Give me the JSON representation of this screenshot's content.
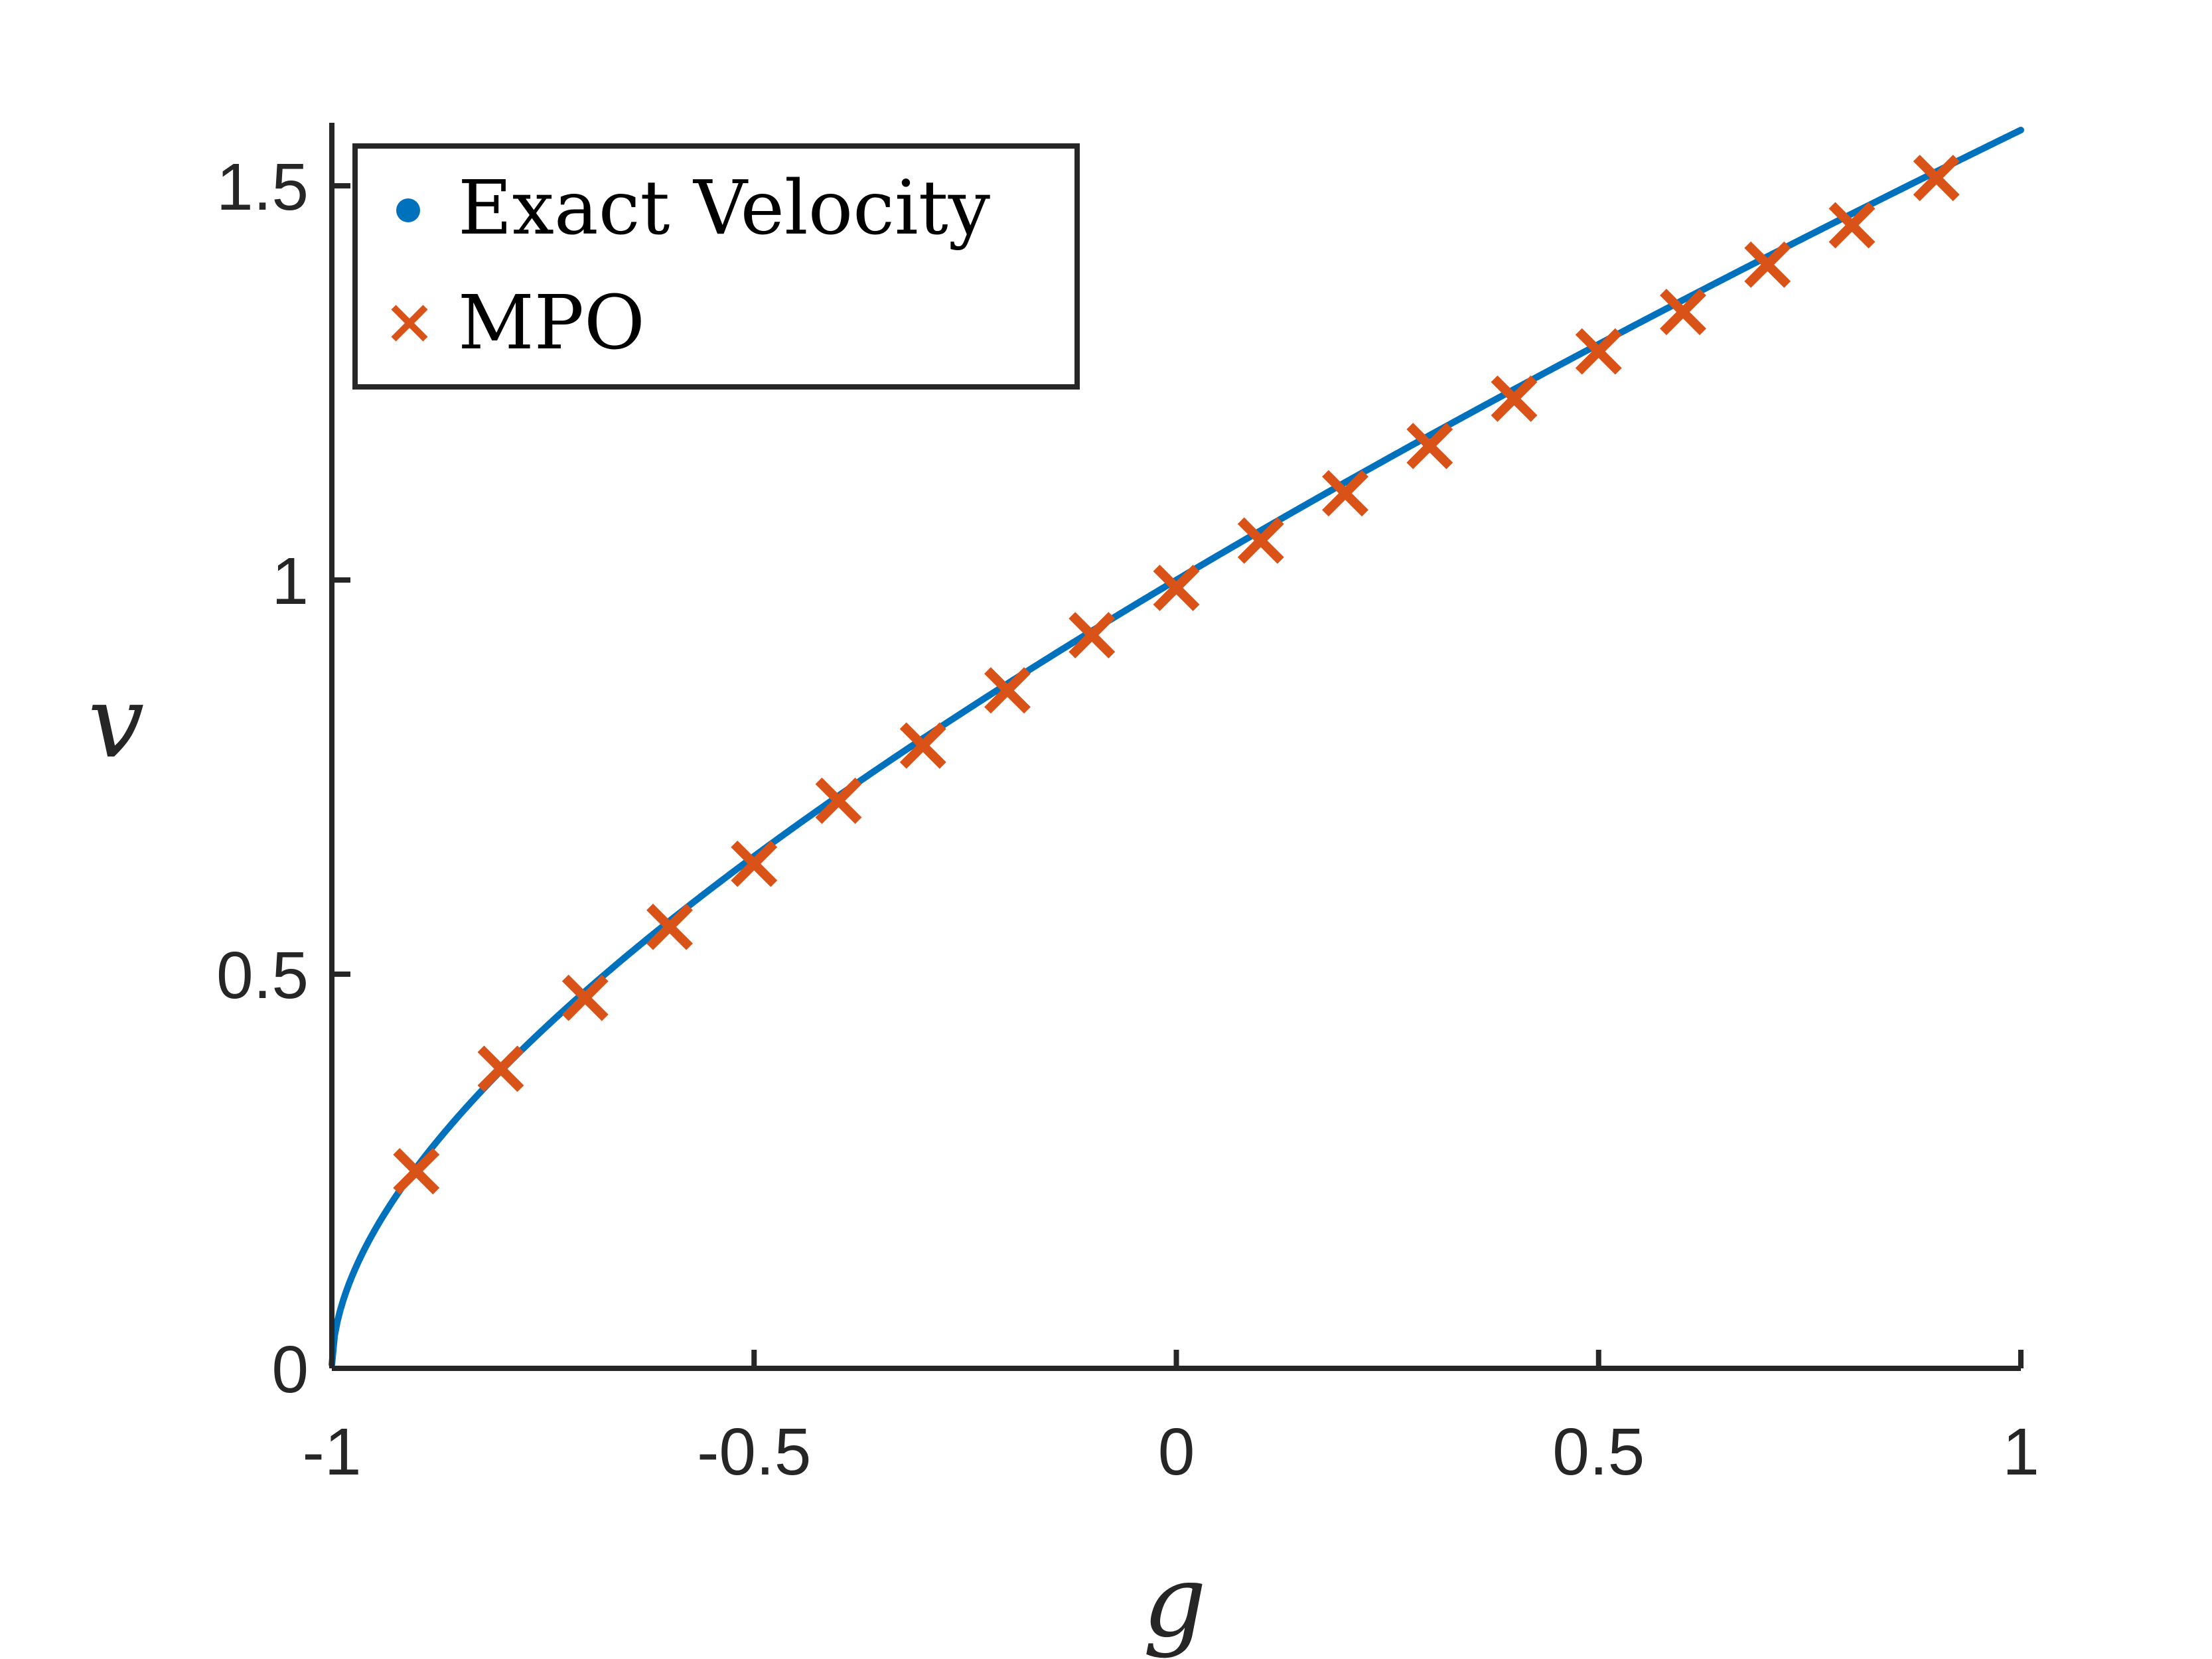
{
  "chart_data": {
    "type": "line+scatter",
    "title": "",
    "xlabel": "g",
    "ylabel": "v",
    "xlim": [
      -1,
      1
    ],
    "ylim": [
      0,
      1.58
    ],
    "grid": false,
    "legend_position": "top-left",
    "x_ticks": [
      -1,
      -0.5,
      0,
      0.5,
      1
    ],
    "x_tick_labels": [
      "-1",
      "-0.5",
      "0",
      "0.5",
      "1"
    ],
    "y_ticks": [
      0,
      0.5,
      1,
      1.5
    ],
    "y_tick_labels": [
      "0",
      "0.5",
      "1",
      "1.5"
    ],
    "series": [
      {
        "name": "Exact Velocity",
        "style": "line",
        "color": "#0072BD",
        "formula": "v = pi*sqrt(1-g^2)/(2*arccos(g))",
        "x_range": [
          -1,
          1
        ]
      },
      {
        "name": "MPO",
        "style": "x-marker",
        "color": "#D95319",
        "x": [
          -0.9,
          -0.8,
          -0.7,
          -0.6,
          -0.5,
          -0.4,
          -0.3,
          -0.2,
          -0.1,
          0.0,
          0.1,
          0.2,
          0.3,
          0.4,
          0.5,
          0.6,
          0.7,
          0.8,
          0.9
        ],
        "values": [
          0.25,
          0.38,
          0.47,
          0.56,
          0.64,
          0.72,
          0.79,
          0.86,
          0.93,
          0.99,
          1.05,
          1.11,
          1.17,
          1.23,
          1.29,
          1.34,
          1.4,
          1.45,
          1.51
        ]
      }
    ]
  },
  "colors": {
    "axis": "#262626",
    "exact": "#0072BD",
    "mpo": "#D95319"
  }
}
